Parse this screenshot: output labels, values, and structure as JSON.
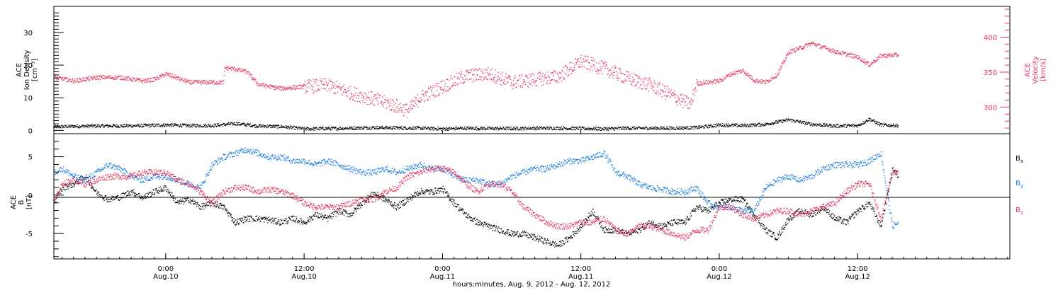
{
  "colors": {
    "black": "#000000",
    "pink": "#e8305c",
    "blue": "#1f7fe0"
  },
  "x_axis": {
    "label": "hours:minutes, Aug.  9, 2012 - Aug. 12, 2012",
    "ticks": [
      {
        "hours": 24,
        "time": "0:00",
        "date": "Aug.10"
      },
      {
        "hours": 36,
        "time": "12:00",
        "date": "Aug.10"
      },
      {
        "hours": 48,
        "time": "0:00",
        "date": "Aug.11"
      },
      {
        "hours": 60,
        "time": "12:00",
        "date": "Aug.11"
      },
      {
        "hours": 72,
        "time": "0:00",
        "date": "Aug.12"
      },
      {
        "hours": 84,
        "time": "12:00",
        "date": "Aug.12"
      }
    ]
  },
  "top_panel": {
    "left_label": [
      "ACE",
      "Ion Density",
      "[cm⁻³]"
    ],
    "right_label": [
      "ACE",
      "Velocity",
      "[km/s]"
    ],
    "left_ticks": [
      "0",
      "10",
      "20",
      "30"
    ],
    "right_ticks": [
      "300",
      "350",
      "400"
    ]
  },
  "bottom_panel": {
    "label": [
      "ACE",
      "B",
      "[nT]"
    ],
    "ticks": [
      "-5",
      "0",
      "5"
    ],
    "legend": [
      {
        "name": "B",
        "sub": "x",
        "color": "#000000"
      },
      {
        "name": "B",
        "sub": "y",
        "color": "#1f7fe0"
      },
      {
        "name": "B",
        "sub": "z",
        "color": "#e8305c"
      }
    ]
  },
  "chart_data": [
    {
      "type": "scatter",
      "xlabel": "hours:minutes, Aug.  9, 2012 - Aug. 12, 2012",
      "ylabel": "ACE Ion Density [cm⁻³]",
      "xlim": [
        14.3,
        97.2
      ],
      "ylim": [
        -1,
        38
      ],
      "y2label": "ACE Velocity [km/s]",
      "y2lim": [
        262,
        444
      ],
      "series": [
        {
          "axis": "left",
          "color": "#000000",
          "x": [
            14.3,
            16,
            18,
            20,
            22,
            24,
            26,
            28,
            30,
            32,
            34,
            36,
            38,
            40,
            42,
            44,
            46,
            48,
            50,
            52,
            54,
            56,
            58,
            60,
            62,
            64,
            66,
            68,
            70,
            72,
            74,
            76,
            78,
            80,
            82,
            84,
            85,
            86,
            87.5
          ],
          "y": [
            1.2,
            1.4,
            1.5,
            1.5,
            1.6,
            1.8,
            1.6,
            1.6,
            2.2,
            1.5,
            1.3,
            0.6,
            0.7,
            0.8,
            1.0,
            0.9,
            0.8,
            0.6,
            0.8,
            0.7,
            0.7,
            0.8,
            0.8,
            0.7,
            0.6,
            0.8,
            0.8,
            0.8,
            1.0,
            1.8,
            1.6,
            2.0,
            3.4,
            2.0,
            1.5,
            1.6,
            3.6,
            1.8,
            1.6
          ]
        },
        {
          "axis": "right",
          "color": "#e8305c",
          "x": [
            14.3,
            16,
            18,
            20,
            22,
            23,
            24,
            26,
            28,
            29,
            29.1,
            30,
            31,
            32,
            34,
            36,
            38,
            40,
            42,
            44,
            45,
            46,
            48,
            50,
            52,
            54,
            56,
            58,
            60,
            62,
            64,
            66,
            68,
            69.5,
            70,
            72,
            73,
            74,
            75,
            76,
            77,
            78,
            79,
            80,
            82,
            84,
            85,
            86,
            87.5
          ],
          "y": [
            343,
            338,
            343,
            343,
            338,
            340,
            348,
            336,
            336,
            336,
            357,
            355,
            351,
            333,
            327,
            330,
            332,
            321,
            312,
            302,
            295,
            314,
            330,
            345,
            348,
            336,
            340,
            344,
            366,
            356,
            342,
            332,
            316,
            304,
            334,
            338,
            348,
            353,
            339,
            336,
            347,
            379,
            385,
            392,
            380,
            372,
            361,
            374,
            375
          ]
        }
      ]
    },
    {
      "type": "scatter",
      "ylabel": "ACE B [nT]",
      "xlim": [
        14.3,
        97.2
      ],
      "ylim": [
        -8.3,
        8
      ],
      "series": [
        {
          "name": "Bx",
          "color": "#000000",
          "x": [
            14.3,
            15,
            16,
            17,
            18,
            19,
            20,
            21,
            22,
            23,
            24,
            25,
            26,
            27,
            28,
            29,
            30,
            31,
            32,
            33,
            34,
            35,
            36,
            37,
            38,
            39,
            40,
            41,
            42,
            43,
            44,
            45,
            46,
            47,
            48,
            49,
            50,
            51,
            52,
            53,
            54,
            55,
            56,
            57,
            58,
            59,
            60,
            61,
            62,
            63,
            64,
            65,
            66,
            67,
            68,
            69,
            70,
            71,
            72,
            73,
            74,
            75,
            76,
            77,
            78,
            79,
            80,
            81,
            82,
            83,
            84,
            85,
            86,
            87,
            87.5
          ],
          "y": [
            -0.8,
            1.0,
            1.5,
            2.5,
            0.3,
            -0.5,
            -0.2,
            0.5,
            -0.3,
            0.5,
            1.0,
            -1.0,
            -0.5,
            -1.5,
            -1.0,
            -1.5,
            -3.5,
            -3.0,
            -3.0,
            -3.2,
            -3.5,
            -3.0,
            -3.5,
            -2.5,
            -3.0,
            -2.0,
            -2.5,
            -1.0,
            0.3,
            -0.5,
            -1.5,
            -0.5,
            0.5,
            0.5,
            0.8,
            -1.0,
            -2.5,
            -3.5,
            -4.0,
            -4.5,
            -5.0,
            -5.0,
            -5.5,
            -6.0,
            -6.5,
            -5.5,
            -4.0,
            -2.0,
            -4.5,
            -4.5,
            -5.0,
            -4.5,
            -3.5,
            -4.0,
            -3.5,
            -3.5,
            -1.5,
            -2.0,
            -1.0,
            -0.5,
            -0.5,
            -2.5,
            -4.5,
            -5.5,
            -3.0,
            -2.0,
            -2.5,
            -1.5,
            -3.0,
            -3.5,
            -2.0,
            -1.0,
            -4.0,
            3.5,
            2.5
          ]
        },
        {
          "name": "By",
          "color": "#1f7fe0",
          "x": [
            14.3,
            15,
            16,
            17,
            18,
            19,
            20,
            21,
            22,
            23,
            24,
            25,
            26,
            27,
            28,
            29,
            30,
            31,
            32,
            33,
            34,
            35,
            36,
            37,
            38,
            39,
            40,
            41,
            42,
            43,
            44,
            45,
            46,
            47,
            48,
            49,
            50,
            51,
            52,
            53,
            54,
            55,
            56,
            57,
            58,
            59,
            60,
            61,
            62,
            63,
            64,
            65,
            66,
            67,
            68,
            69,
            70,
            71,
            72,
            73,
            74,
            75,
            76,
            77,
            78,
            79,
            80,
            81,
            82,
            83,
            84,
            85,
            86,
            87,
            87.5
          ],
          "y": [
            3.0,
            3.5,
            2.5,
            2.0,
            3.0,
            4.0,
            3.5,
            2.5,
            2.0,
            2.5,
            2.5,
            2.0,
            1.5,
            1.0,
            4.0,
            5.0,
            5.5,
            6.0,
            5.5,
            5.0,
            5.0,
            4.5,
            4.5,
            4.0,
            4.5,
            4.0,
            3.5,
            3.0,
            3.0,
            3.5,
            3.0,
            3.5,
            4.0,
            3.5,
            3.5,
            2.5,
            2.0,
            2.0,
            1.5,
            1.5,
            2.5,
            3.0,
            3.5,
            3.5,
            4.0,
            4.5,
            4.5,
            5.0,
            5.5,
            3.0,
            2.5,
            1.5,
            1.0,
            0.8,
            0.5,
            0.5,
            1.0,
            -1.0,
            -1.5,
            -1.5,
            -2.0,
            -2.0,
            1.0,
            2.0,
            2.5,
            2.0,
            2.5,
            3.5,
            4.0,
            4.0,
            4.0,
            4.5,
            5.5,
            -4.0,
            -3.5
          ]
        },
        {
          "name": "Bz",
          "color": "#e8305c",
          "x": [
            14.3,
            15,
            16,
            17,
            18,
            19,
            20,
            21,
            22,
            23,
            24,
            25,
            26,
            27,
            28,
            29,
            30,
            31,
            32,
            33,
            34,
            35,
            36,
            37,
            38,
            39,
            40,
            41,
            42,
            43,
            44,
            45,
            46,
            47,
            48,
            49,
            50,
            51,
            52,
            53,
            54,
            55,
            56,
            57,
            58,
            59,
            60,
            61,
            62,
            63,
            64,
            65,
            66,
            67,
            68,
            69,
            70,
            71,
            72,
            73,
            74,
            75,
            76,
            77,
            78,
            79,
            80,
            81,
            82,
            83,
            84,
            85,
            86,
            87,
            87.5
          ],
          "y": [
            -0.8,
            1.5,
            2.0,
            1.5,
            2.0,
            2.5,
            2.5,
            2.5,
            3.0,
            3.0,
            3.0,
            2.0,
            1.5,
            0.5,
            -1.0,
            0.5,
            1.0,
            1.0,
            0.5,
            0.8,
            0.5,
            0.0,
            -1.0,
            -1.5,
            -1.5,
            -1.5,
            -1.0,
            -0.5,
            -0.5,
            0.5,
            1.0,
            2.5,
            3.0,
            3.5,
            3.5,
            3.0,
            1.5,
            0.5,
            1.5,
            1.5,
            0.5,
            -1.5,
            -2.5,
            -3.5,
            -4.0,
            -4.0,
            -3.5,
            -3.5,
            -3.0,
            -4.5,
            -5.0,
            -4.0,
            -4.0,
            -4.5,
            -5.0,
            -5.5,
            -4.5,
            -4.5,
            -1.5,
            -1.5,
            -2.5,
            -3.0,
            -2.5,
            -2.0,
            -2.0,
            -2.5,
            -2.0,
            -1.5,
            -1.0,
            0.5,
            1.5,
            1.5,
            -3.0,
            3.0,
            3.0
          ]
        }
      ]
    }
  ]
}
